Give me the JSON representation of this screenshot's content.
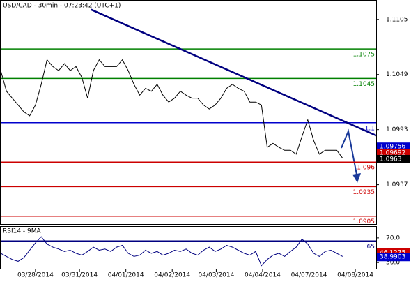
{
  "chart_data": [
    {
      "type": "line",
      "title": "USD/CAD - 30min - 07:23:42 (UTC+1)",
      "color": "#000000",
      "xlim": [
        0,
        8.1
      ],
      "ylim": [
        1.0897,
        1.1124
      ],
      "yticks": [
        1.1105,
        1.1049,
        1.0993,
        1.0937
      ],
      "x": [
        0,
        0.125,
        0.25,
        0.375,
        0.5,
        0.625,
        0.75,
        0.875,
        1,
        1.125,
        1.25,
        1.375,
        1.5,
        1.625,
        1.75,
        1.875,
        2,
        2.125,
        2.25,
        2.375,
        2.5,
        2.625,
        2.75,
        2.875,
        3,
        3.125,
        3.25,
        3.375,
        3.5,
        3.625,
        3.75,
        3.875,
        4,
        4.125,
        4.25,
        4.375,
        4.5,
        4.625,
        4.75,
        4.875,
        5,
        5.125,
        5.25,
        5.375,
        5.5,
        5.625,
        5.75,
        5.875,
        6,
        6.125,
        6.25,
        6.375,
        6.5,
        6.625,
        6.75,
        6.875,
        7,
        7.125,
        7.25,
        7.375
      ],
      "values": [
        1.1053,
        1.1032,
        1.1025,
        1.1018,
        1.1011,
        1.1007,
        1.1018,
        1.1039,
        1.1064,
        1.1057,
        1.1053,
        1.106,
        1.1053,
        1.1057,
        1.1046,
        1.1025,
        1.1053,
        1.1064,
        1.1057,
        1.1057,
        1.1057,
        1.1064,
        1.1053,
        1.1039,
        1.1028,
        1.1035,
        1.1032,
        1.1039,
        1.1028,
        1.1021,
        1.1025,
        1.1032,
        1.1028,
        1.1025,
        1.1025,
        1.1018,
        1.1014,
        1.1018,
        1.1025,
        1.1035,
        1.1039,
        1.1035,
        1.1032,
        1.1021,
        1.1021,
        1.1018,
        1.0975,
        1.0979,
        1.0975,
        1.0972,
        1.0972,
        1.0968,
        1.0986,
        1.1003,
        1.0982,
        1.0968,
        1.0972,
        1.0972,
        1.0972,
        1.0964
      ],
      "levels": [
        {
          "value": 1.1075,
          "color": "#008000"
        },
        {
          "value": 1.1045,
          "color": "#008000"
        },
        {
          "value": 1.1,
          "color": "#0000cc"
        },
        {
          "value": 1.096,
          "color": "#cc0000"
        },
        {
          "value": 1.0935,
          "color": "#cc0000"
        },
        {
          "value": 1.0905,
          "color": "#cc0000"
        }
      ],
      "trendline": {
        "x": [
          1.95,
          8.1
        ],
        "y": [
          1.1115,
          1.0987
        ],
        "color": "#000080"
      },
      "price_tags": [
        {
          "value": 1.09756,
          "color": "#0000cc"
        },
        {
          "value": 1.09692,
          "color": "#cc0000"
        },
        {
          "value": 1.0963,
          "color": "#000000"
        }
      ]
    },
    {
      "type": "line",
      "title": "RSI14 - 9MA",
      "color": "#000080",
      "xlim": [
        0,
        8.1
      ],
      "ylim": [
        20,
        88
      ],
      "yticks": [
        {
          "value": 70,
          "label": "70.0"
        },
        {
          "value": 30,
          "label": "30.0"
        }
      ],
      "xticks": [
        {
          "value": 0.75,
          "label": "03/28/2014"
        },
        {
          "value": 1.7,
          "label": "03/31/2014"
        },
        {
          "value": 2.7,
          "label": "04/01/2014"
        },
        {
          "value": 3.7,
          "label": "04/02/2014"
        },
        {
          "value": 4.65,
          "label": "04/03/2014"
        },
        {
          "value": 5.65,
          "label": "04/04/2014"
        },
        {
          "value": 6.65,
          "label": "04/07/2014"
        },
        {
          "value": 7.65,
          "label": "04/08/2014"
        }
      ],
      "x": [
        0,
        0.125,
        0.25,
        0.375,
        0.5,
        0.625,
        0.75,
        0.875,
        1,
        1.125,
        1.25,
        1.375,
        1.5,
        1.625,
        1.75,
        1.875,
        2,
        2.125,
        2.25,
        2.375,
        2.5,
        2.625,
        2.75,
        2.875,
        3,
        3.125,
        3.25,
        3.375,
        3.5,
        3.625,
        3.75,
        3.875,
        4,
        4.125,
        4.25,
        4.375,
        4.5,
        4.625,
        4.75,
        4.875,
        5,
        5.125,
        5.25,
        5.375,
        5.5,
        5.625,
        5.75,
        5.875,
        6,
        6.125,
        6.25,
        6.375,
        6.5,
        6.625,
        6.75,
        6.875,
        7,
        7.125,
        7.25,
        7.375
      ],
      "values": [
        45,
        40,
        35,
        32,
        38,
        50,
        62,
        72,
        60,
        55,
        52,
        48,
        50,
        45,
        42,
        48,
        55,
        50,
        52,
        48,
        55,
        58,
        45,
        40,
        42,
        50,
        45,
        48,
        42,
        45,
        50,
        48,
        52,
        45,
        42,
        50,
        55,
        48,
        52,
        58,
        55,
        50,
        45,
        42,
        48,
        25,
        35,
        42,
        45,
        40,
        48,
        55,
        68,
        60,
        45,
        40,
        48,
        50,
        45,
        40
      ],
      "levels": [
        {
          "value": 65,
          "color": "#000080"
        }
      ],
      "price_tags": [
        {
          "value": 46.1275,
          "color": "#cc0000"
        },
        {
          "value": 38.9903,
          "color": "#0000cc"
        }
      ]
    }
  ]
}
